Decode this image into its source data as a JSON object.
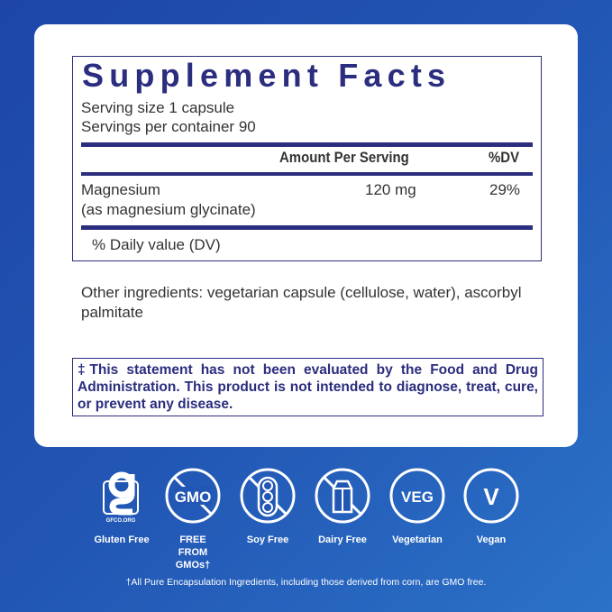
{
  "facts": {
    "title": "Supplement Facts",
    "serving_size": "Serving size  1 capsule",
    "servings_per_container": "Servings per container  90",
    "col_amount": "Amount Per Serving",
    "col_dv": "%DV",
    "rows": [
      {
        "name": "Magnesium",
        "detail": "(as magnesium glycinate)",
        "amount": "120 mg",
        "dv": "29%"
      }
    ],
    "dv_note": "% Daily value (DV)"
  },
  "other_ingredients": "Other ingredients: vegetarian capsule (cellulose, water), ascorbyl palmitate",
  "disclaimer": "‡This statement has not been evaluated by the Food and Drug Administration. This product is not intended to diagnose, treat, cure, or prevent any disease.",
  "badges": [
    {
      "icon": "gluten-free-icon",
      "label": "Gluten Free",
      "logo_text": "GFCO.ORG"
    },
    {
      "icon": "no-gmo-icon",
      "label": "FREE FROM GMOs†",
      "icon_text": "GMO"
    },
    {
      "icon": "no-soy-icon",
      "label": "Soy Free"
    },
    {
      "icon": "no-dairy-icon",
      "label": "Dairy Free"
    },
    {
      "icon": "vegetarian-icon",
      "label": "Vegetarian",
      "icon_text": "VEG"
    },
    {
      "icon": "vegan-icon",
      "label": "Vegan",
      "icon_text": "V"
    }
  ],
  "footnote": "†All Pure Encapsulation Ingredients, including those derived from corn, are GMO free.",
  "colors": {
    "navy": "#2b2d7e",
    "background": "#2256b4"
  }
}
